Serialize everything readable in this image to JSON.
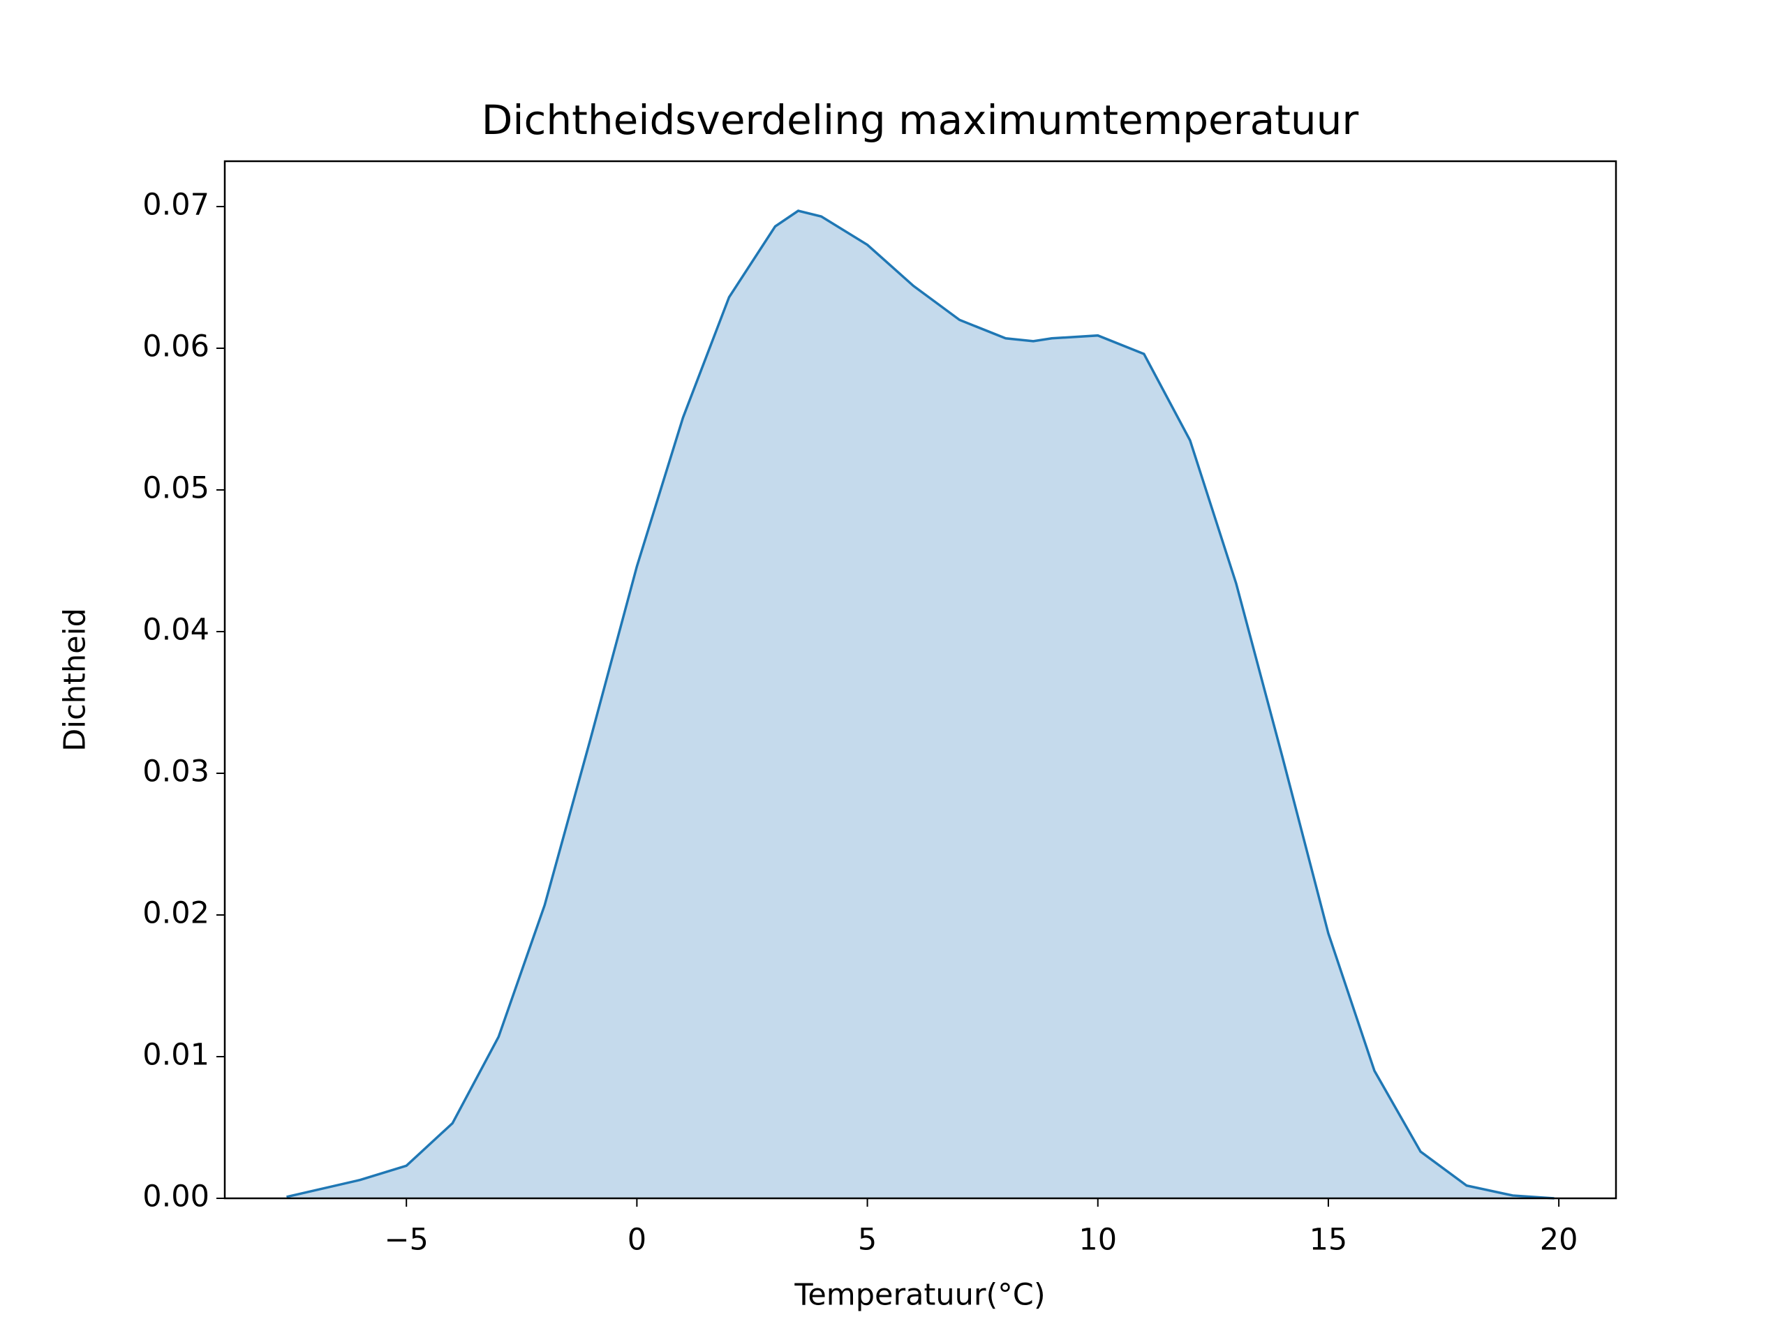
{
  "chart_data": {
    "type": "area",
    "title": "Dichtheidsverdeling maximumtemperatuur",
    "x_label": "Temperatuur(°C)",
    "y_label": "Dichtheid",
    "color": "#1f77b4",
    "fill_color": "#c5daec",
    "x": [
      -7.6,
      -6,
      -5,
      -4,
      -3,
      -2,
      -1,
      0,
      1,
      2,
      3,
      3.5,
      4,
      5,
      6,
      7,
      8,
      8.6,
      9,
      10,
      11,
      12,
      13,
      14,
      15,
      16,
      17,
      18,
      19,
      19.9
    ],
    "values": [
      0.0001,
      0.0013,
      0.0023,
      0.0053,
      0.0114,
      0.0207,
      0.0325,
      0.0446,
      0.0551,
      0.0636,
      0.0686,
      0.0697,
      0.0693,
      0.0673,
      0.0644,
      0.062,
      0.0607,
      0.0605,
      0.0607,
      0.0609,
      0.0596,
      0.0535,
      0.0434,
      0.0312,
      0.0187,
      0.009,
      0.0033,
      0.0009,
      0.0002,
      0.0
    ],
    "xlim": [
      -8.94,
      21.24
    ],
    "ylim": [
      0,
      0.0732
    ],
    "xticks": [
      {
        "value": -5,
        "label": "−5"
      },
      0,
      5,
      10,
      15,
      20
    ],
    "yticks": [
      {
        "value": 0,
        "label": "0.00"
      },
      0.01,
      0.02,
      0.03,
      0.04,
      0.05,
      0.06,
      0.07
    ]
  }
}
